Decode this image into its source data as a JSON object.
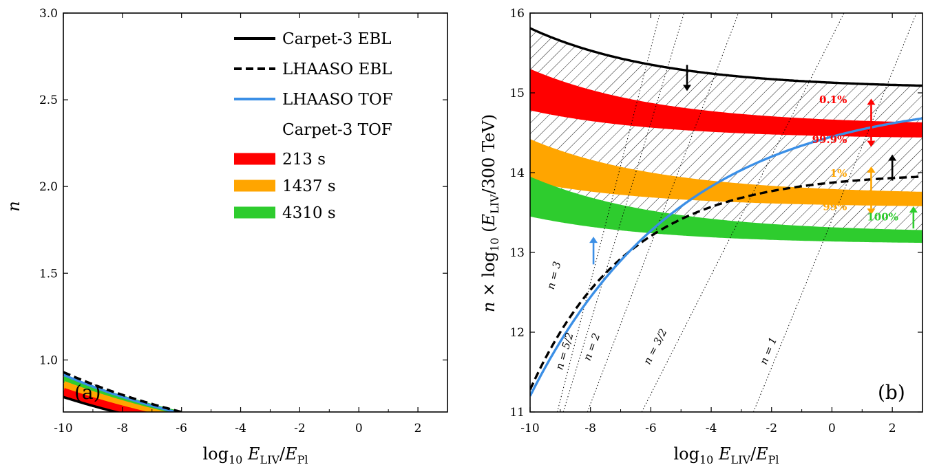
{
  "chart_data": [
    {
      "type": "line",
      "panel_label": "(a)",
      "xlabel": "log10 E_LIV / E_Pl",
      "ylabel": "n",
      "xlim": [
        -10,
        3
      ],
      "ylim": [
        0.7,
        3.0
      ],
      "x_ticks": [
        "-10",
        "-8",
        "-6",
        "-4",
        "-2",
        "0",
        "2"
      ],
      "y_ticks": [
        "1.0",
        "1.5",
        "2.0",
        "2.5",
        "3.0"
      ],
      "grid": false,
      "legend_position": "top-right",
      "legend_subheader": "Carpet-3 TOF",
      "series": [
        {
          "name": "Carpet-3 EBL",
          "style": "solid",
          "color": "#000000",
          "a": 24.37
        },
        {
          "name": "LHAASO EBL",
          "style": "dashed",
          "color": "#000000",
          "a": 22.15
        },
        {
          "name": "LHAASO TOF",
          "style": "solid",
          "color": "#3b8fe6",
          "a": 22.35
        },
        {
          "name": "213 s",
          "style": "band",
          "color": "#ff0000",
          "a": 23.85
        },
        {
          "name": "1437 s",
          "style": "band",
          "color": "#ffa500",
          "a": 23.2
        },
        {
          "name": "4310 s",
          "style": "band",
          "color": "#2ecc2e",
          "a": 22.65
        }
      ]
    },
    {
      "type": "line",
      "panel_label": "(b)",
      "xlabel": "log10 E_LIV / E_Pl",
      "ylabel": "n × log10 (E_LIV / 300 TeV)",
      "xlim": [
        -10,
        3
      ],
      "ylim": [
        11,
        16
      ],
      "x_ticks": [
        "-10",
        "-8",
        "-6",
        "-4",
        "-2",
        "0",
        "2"
      ],
      "y_ticks": [
        "11",
        "12",
        "13",
        "14",
        "15",
        "16"
      ],
      "grid": false,
      "series": [
        {
          "name": "Carpet-3 EBL",
          "color": "#000000",
          "style": "solid",
          "value_at_x_-10": 15.81,
          "value_at_x_3": 15.09
        },
        {
          "name": "LHAASO EBL",
          "color": "#000000",
          "style": "dashed",
          "value_at_x_-10": 11.28,
          "value_at_x_3": 13.95
        },
        {
          "name": "LHAASO TOF",
          "color": "#3b8fe6",
          "style": "solid",
          "value_at_x_-10": 11.2,
          "value_at_x_3": 14.68
        },
        {
          "name": "213 s",
          "color": "#ff0000",
          "style": "band",
          "upper_at_x_-10": 15.3,
          "upper_at_x_3": 14.63,
          "lower_at_x_-10": 14.78,
          "lower_at_x_3": 14.44
        },
        {
          "name": "1437 s",
          "color": "#ffa500",
          "style": "band",
          "upper_at_x_-10": 14.42,
          "upper_at_x_3": 13.76,
          "lower_at_x_-10": 13.88,
          "lower_at_x_3": 13.58
        },
        {
          "name": "4310 s",
          "color": "#2ecc2e",
          "style": "band",
          "upper_at_x_-10": 13.95,
          "upper_at_x_3": 13.28,
          "lower_at_x_-10": 13.45,
          "lower_at_x_3": 13.12
        }
      ],
      "n_lines": [
        {
          "label": "n = 3",
          "x_at_11": -9.1,
          "x_at_16": -5.7
        },
        {
          "label": "n = 5/2",
          "x_at_11": -8.9,
          "x_at_16": -4.9
        },
        {
          "label": "n = 2",
          "x_at_11": -8.1,
          "x_at_16": -3.1
        },
        {
          "label": "n = 3/2",
          "x_at_11": -6.3,
          "x_at_16": 0.4
        },
        {
          "label": "n = 1",
          "x_at_11": -2.6,
          "x_at_16": 2.8
        }
      ],
      "annotations": [
        {
          "text": "0.1%",
          "color": "#ff0000",
          "x": 0.5,
          "y": 14.87
        },
        {
          "text": "99.9%",
          "color": "#ff0000",
          "x": 0.5,
          "y": 14.37
        },
        {
          "text": "1%",
          "color": "#ffa500",
          "x": 0.5,
          "y": 13.95
        },
        {
          "text": "99%",
          "color": "#ffa500",
          "x": 0.5,
          "y": 13.53
        },
        {
          "text": "100%",
          "color": "#2ecc2e",
          "x": 2.2,
          "y": 13.4
        }
      ],
      "arrows": [
        {
          "color": "#000000",
          "x": -4.8,
          "y_from": 15.35,
          "y_to": 15.1,
          "dir": "down"
        },
        {
          "color": "#ff0000",
          "x": 1.3,
          "y_from": 14.4,
          "y_to": 14.85,
          "dir": "both"
        },
        {
          "color": "#ffa500",
          "x": 1.3,
          "y_from": 13.55,
          "y_to": 14.0,
          "dir": "both"
        },
        {
          "color": "#000000",
          "x": 2.0,
          "y_from": 13.9,
          "y_to": 14.15,
          "dir": "up"
        },
        {
          "color": "#2ecc2e",
          "x": 2.7,
          "y_from": 13.3,
          "y_to": 13.5,
          "dir": "up"
        },
        {
          "color": "#3b8fe6",
          "x": -7.9,
          "y_from": 12.85,
          "y_to": 13.12,
          "dir": "up"
        }
      ]
    }
  ]
}
